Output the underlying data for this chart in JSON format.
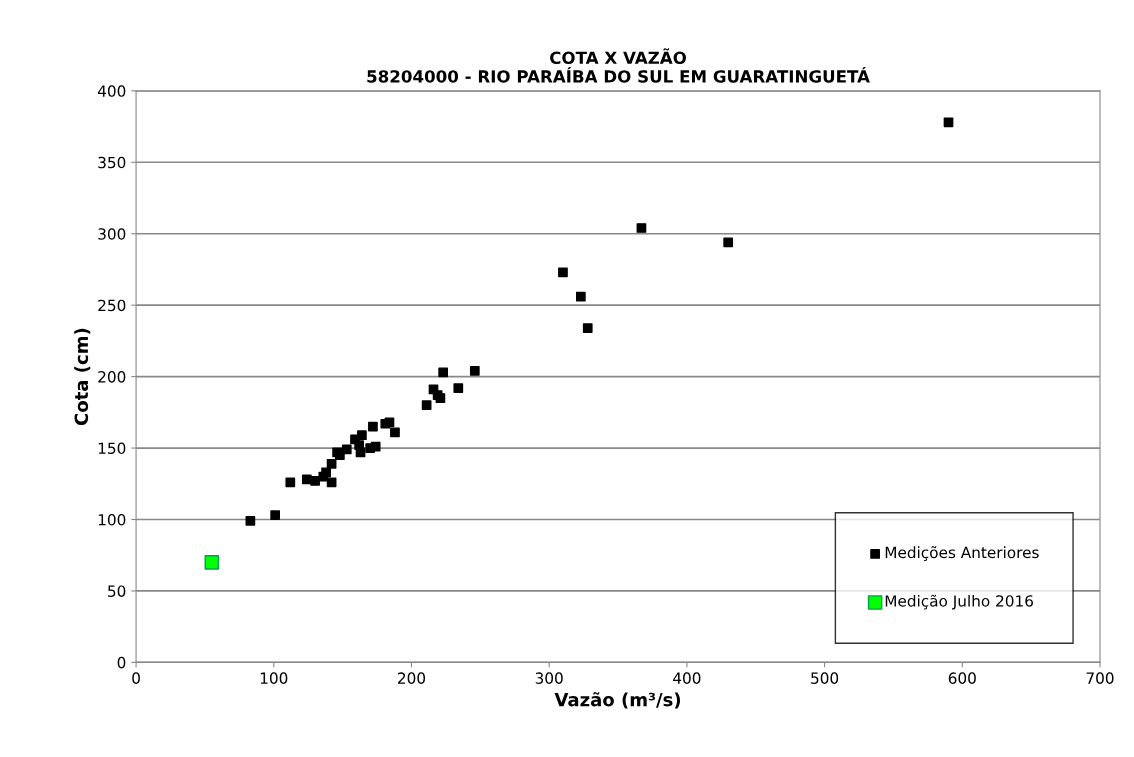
{
  "chart_data": {
    "type": "scatter",
    "title": "COTA X VAZÃO\n58204000 - RIO PARAÍBA DO SUL EM GUARATINGUETÁ",
    "xlabel": "Vazão (m³/s)",
    "ylabel": "Cota (cm)",
    "xlim": [
      0,
      700
    ],
    "xticks": [
      0,
      100,
      200,
      300,
      400,
      500,
      600,
      700
    ],
    "ylim": [
      0,
      400
    ],
    "yticks": [
      0,
      50,
      100,
      150,
      200,
      250,
      300,
      350,
      400
    ],
    "grid": "y",
    "legend": "bottom right",
    "marker": "square",
    "series": [
      {
        "name": "Medições Anteriores",
        "color": "#000000",
        "x": [
          83,
          98,
          101,
          112,
          124,
          130,
          142,
          136,
          138,
          140,
          142,
          146,
          148,
          153,
          159,
          162,
          163,
          164,
          170,
          174,
          172,
          181,
          184,
          188,
          211,
          216,
          219,
          221,
          223,
          234,
          246,
          367,
          430,
          310,
          323,
          328,
          590
        ],
        "values": [
          99,
          null,
          103,
          126,
          128,
          127,
          126,
          130,
          133,
          null,
          139,
          147,
          145,
          149,
          156,
          152,
          147,
          159,
          150,
          151,
          165,
          167,
          168,
          161,
          180,
          191,
          187,
          185,
          203,
          192,
          204,
          304,
          294,
          273,
          256,
          234,
          378
        ]
      },
      {
        "name": "Medição Julho 2016",
        "color": "#00ff00",
        "x": [
          55
        ],
        "values": [
          70
        ]
      }
    ]
  }
}
